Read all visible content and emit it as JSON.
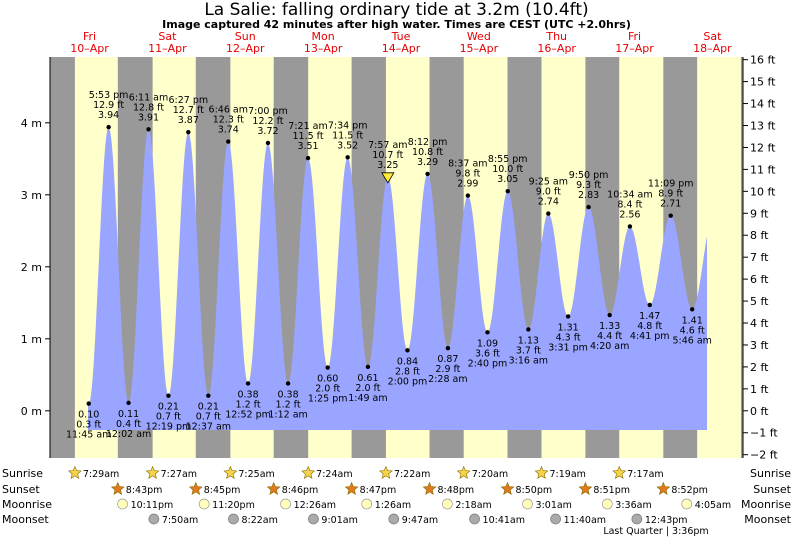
{
  "title": "La Salie: falling  ordinary tide at 3.2m (10.4ft)",
  "subtitle": "Image captured 42 minutes after high water. Times are CEST (UTC +2.0hrs)",
  "days": [
    {
      "name": "Fri",
      "date": "10–Apr"
    },
    {
      "name": "Sat",
      "date": "11–Apr"
    },
    {
      "name": "Sun",
      "date": "12–Apr"
    },
    {
      "name": "Mon",
      "date": "13–Apr"
    },
    {
      "name": "Tue",
      "date": "14–Apr"
    },
    {
      "name": "Wed",
      "date": "15–Apr"
    },
    {
      "name": "Thu",
      "date": "16–Apr"
    },
    {
      "name": "Fri",
      "date": "17–Apr"
    },
    {
      "name": "Sat",
      "date": "18–Apr"
    }
  ],
  "colors": {
    "night": "#999999",
    "day": "#ffffcc",
    "water": "#99a5ff",
    "marker": "#ffee33",
    "sunset": "#e07a20",
    "moon": "#ffffbb",
    "moonset": "#aaaaaa"
  },
  "chart_data": {
    "type": "area",
    "xlabel": "",
    "ylabel_left": "m",
    "ylabel_right": "ft",
    "ylim_m": [
      -0.45,
      4.85
    ],
    "yticks_m": [
      {
        "v": 0,
        "label": "0 m"
      },
      {
        "v": 1,
        "label": "1 m"
      },
      {
        "v": 2,
        "label": "2 m"
      },
      {
        "v": 3,
        "label": "3 m"
      },
      {
        "v": 4,
        "label": "4 m"
      }
    ],
    "yticks_ft": [
      {
        "v": -2,
        "label": "−2 ft"
      },
      {
        "v": -1,
        "label": "−1 ft"
      },
      {
        "v": 0,
        "label": "0 ft"
      },
      {
        "v": 1,
        "label": "1 ft"
      },
      {
        "v": 2,
        "label": "2 ft"
      },
      {
        "v": 3,
        "label": "3 ft"
      },
      {
        "v": 4,
        "label": "4 ft"
      },
      {
        "v": 5,
        "label": "5 ft"
      },
      {
        "v": 6,
        "label": "6 ft"
      },
      {
        "v": 7,
        "label": "7 ft"
      },
      {
        "v": 8,
        "label": "8 ft"
      },
      {
        "v": 9,
        "label": "9 ft"
      },
      {
        "v": 10,
        "label": "10 ft"
      },
      {
        "v": 11,
        "label": "11 ft"
      },
      {
        "v": 12,
        "label": "12 ft"
      },
      {
        "v": 13,
        "label": "13 ft"
      },
      {
        "v": 14,
        "label": "14 ft"
      },
      {
        "v": 15,
        "label": "15 ft"
      },
      {
        "v": 16,
        "label": "16 ft"
      }
    ],
    "tides": [
      {
        "day": 0,
        "time": "11:45 am",
        "m": 0.1,
        "ft": "0.3 ft",
        "m_label": "0.10",
        "type": "low"
      },
      {
        "day": 0,
        "time": "5:53 pm",
        "m": 3.94,
        "ft": "12.9 ft",
        "m_label": "3.94",
        "type": "high"
      },
      {
        "day": 1,
        "time": "12:02 am",
        "m": 0.11,
        "ft": "0.4 ft",
        "m_label": "0.11",
        "type": "low"
      },
      {
        "day": 1,
        "time": "6:11 am",
        "m": 3.91,
        "ft": "12.8 ft",
        "m_label": "3.91",
        "type": "high"
      },
      {
        "day": 1,
        "time": "12:19 pm",
        "m": 0.21,
        "ft": "0.7 ft",
        "m_label": "0.21",
        "type": "low"
      },
      {
        "day": 1,
        "time": "6:27 pm",
        "m": 3.87,
        "ft": "12.7 ft",
        "m_label": "3.87",
        "type": "high"
      },
      {
        "day": 2,
        "time": "12:37 am",
        "m": 0.21,
        "ft": "0.7 ft",
        "m_label": "0.21",
        "type": "low"
      },
      {
        "day": 2,
        "time": "6:46 am",
        "m": 3.74,
        "ft": "12.3 ft",
        "m_label": "3.74",
        "type": "high"
      },
      {
        "day": 2,
        "time": "12:52 pm",
        "m": 0.38,
        "ft": "1.2 ft",
        "m_label": "0.38",
        "type": "low"
      },
      {
        "day": 2,
        "time": "7:00 pm",
        "m": 3.72,
        "ft": "12.2 ft",
        "m_label": "3.72",
        "type": "high"
      },
      {
        "day": 3,
        "time": "1:12 am",
        "m": 0.38,
        "ft": "1.2 ft",
        "m_label": "0.38",
        "type": "low"
      },
      {
        "day": 3,
        "time": "7:21 am",
        "m": 3.51,
        "ft": "11.5 ft",
        "m_label": "3.51",
        "type": "high"
      },
      {
        "day": 3,
        "time": "1:25 pm",
        "m": 0.6,
        "ft": "2.0 ft",
        "m_label": "0.60",
        "type": "low"
      },
      {
        "day": 3,
        "time": "7:34 pm",
        "m": 3.52,
        "ft": "11.5 ft",
        "m_label": "3.52",
        "type": "high"
      },
      {
        "day": 4,
        "time": "1:49 am",
        "m": 0.61,
        "ft": "2.0 ft",
        "m_label": "0.61",
        "type": "low"
      },
      {
        "day": 4,
        "time": "7:57 am",
        "m": 3.25,
        "ft": "10.7 ft",
        "m_label": "3.25",
        "type": "high",
        "current": true
      },
      {
        "day": 4,
        "time": "2:00 pm",
        "m": 0.84,
        "ft": "2.8 ft",
        "m_label": "0.84",
        "type": "low"
      },
      {
        "day": 4,
        "time": "8:12 pm",
        "m": 3.29,
        "ft": "10.8 ft",
        "m_label": "3.29",
        "type": "high"
      },
      {
        "day": 5,
        "time": "2:28 am",
        "m": 0.87,
        "ft": "2.9 ft",
        "m_label": "0.87",
        "type": "low"
      },
      {
        "day": 5,
        "time": "8:37 am",
        "m": 2.99,
        "ft": "9.8 ft",
        "m_label": "2.99",
        "type": "high"
      },
      {
        "day": 5,
        "time": "2:40 pm",
        "m": 1.09,
        "ft": "3.6 ft",
        "m_label": "1.09",
        "type": "low"
      },
      {
        "day": 5,
        "time": "8:55 pm",
        "m": 3.05,
        "ft": "10.0 ft",
        "m_label": "3.05",
        "type": "high"
      },
      {
        "day": 6,
        "time": "3:16 am",
        "m": 1.13,
        "ft": "3.7 ft",
        "m_label": "1.13",
        "type": "low"
      },
      {
        "day": 6,
        "time": "9:25 am",
        "m": 2.74,
        "ft": "9.0 ft",
        "m_label": "2.74",
        "type": "high"
      },
      {
        "day": 6,
        "time": "3:31 pm",
        "m": 1.31,
        "ft": "4.3 ft",
        "m_label": "1.31",
        "type": "low"
      },
      {
        "day": 6,
        "time": "9:50 pm",
        "m": 2.83,
        "ft": "9.3 ft",
        "m_label": "2.83",
        "type": "high"
      },
      {
        "day": 7,
        "time": "4:20 am",
        "m": 1.33,
        "ft": "4.4 ft",
        "m_label": "1.33",
        "type": "low"
      },
      {
        "day": 7,
        "time": "10:34 am",
        "m": 2.56,
        "ft": "8.4 ft",
        "m_label": "2.56",
        "type": "high"
      },
      {
        "day": 7,
        "time": "4:41 pm",
        "m": 1.47,
        "ft": "4.8 ft",
        "m_label": "1.47",
        "type": "low"
      },
      {
        "day": 7,
        "time": "11:09 pm",
        "m": 2.71,
        "ft": "8.9 ft",
        "m_label": "2.71",
        "type": "high"
      },
      {
        "day": 8,
        "time": "5:46 am",
        "m": 1.41,
        "ft": "4.6 ft",
        "m_label": "1.41",
        "type": "low"
      }
    ],
    "sunrise": [
      {
        "day": 0,
        "time": "7:29am"
      },
      {
        "day": 1,
        "time": "7:27am"
      },
      {
        "day": 2,
        "time": "7:25am"
      },
      {
        "day": 3,
        "time": "7:24am"
      },
      {
        "day": 4,
        "time": "7:22am"
      },
      {
        "day": 5,
        "time": "7:20am"
      },
      {
        "day": 6,
        "time": "7:19am"
      },
      {
        "day": 7,
        "time": "7:17am"
      }
    ],
    "sunset": [
      {
        "day": 0,
        "time": "8:43pm"
      },
      {
        "day": 1,
        "time": "8:45pm"
      },
      {
        "day": 2,
        "time": "8:46pm"
      },
      {
        "day": 3,
        "time": "8:47pm"
      },
      {
        "day": 4,
        "time": "8:48pm"
      },
      {
        "day": 5,
        "time": "8:50pm"
      },
      {
        "day": 6,
        "time": "8:51pm"
      },
      {
        "day": 7,
        "time": "8:52pm"
      }
    ],
    "moonrise": [
      {
        "day": 0,
        "time": "10:11pm"
      },
      {
        "day": 1,
        "time": "11:20pm"
      },
      {
        "day": 3,
        "time": "12:26am"
      },
      {
        "day": 4,
        "time": "1:26am"
      },
      {
        "day": 5,
        "time": "2:18am"
      },
      {
        "day": 6,
        "time": "3:01am"
      },
      {
        "day": 7,
        "time": "3:36am"
      },
      {
        "day": 8,
        "time": "4:05am"
      }
    ],
    "moonset": [
      {
        "day": 1,
        "time": "7:50am"
      },
      {
        "day": 2,
        "time": "8:22am"
      },
      {
        "day": 3,
        "time": "9:01am"
      },
      {
        "day": 4,
        "time": "9:47am"
      },
      {
        "day": 5,
        "time": "10:41am"
      },
      {
        "day": 6,
        "time": "11:40am"
      },
      {
        "day": 7,
        "time": "12:43pm"
      }
    ],
    "row_labels": {
      "sunrise": "Sunrise",
      "sunset": "Sunset",
      "moonrise": "Moonrise",
      "moonset": "Moonset"
    },
    "moon_phase": "Last Quarter | 3:36pm"
  }
}
